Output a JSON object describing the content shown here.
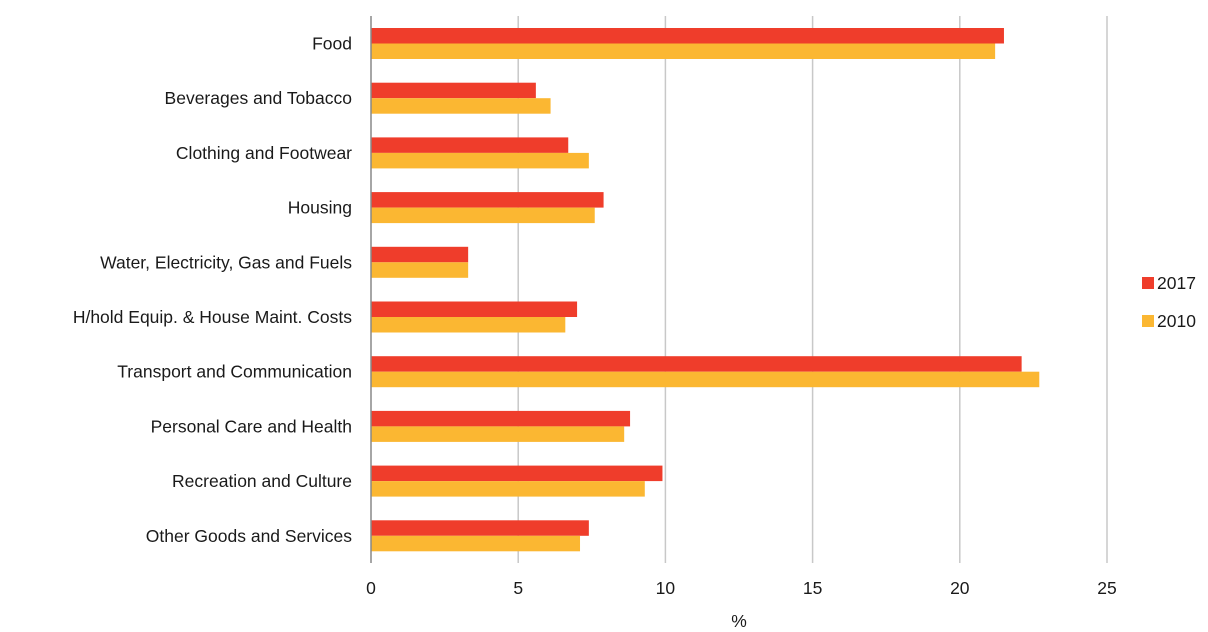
{
  "chart_data": {
    "type": "bar",
    "orientation": "horizontal",
    "categories": [
      "Food",
      "Beverages and Tobacco",
      "Clothing and Footwear",
      "Housing",
      "Water, Electricity, Gas and Fuels",
      "H/hold Equip. & House Maint. Costs",
      "Transport and Communication",
      "Personal Care and Health",
      "Recreation and Culture",
      "Other Goods and Services"
    ],
    "series": [
      {
        "name": "2017",
        "color": "#ef3d2b",
        "values": [
          21.5,
          5.6,
          6.7,
          7.9,
          3.3,
          7.0,
          22.1,
          8.8,
          9.9,
          7.4
        ]
      },
      {
        "name": "2010",
        "color": "#fbb732",
        "values": [
          21.2,
          6.1,
          7.4,
          7.6,
          3.3,
          6.6,
          22.7,
          8.6,
          9.3,
          7.1
        ]
      }
    ],
    "xlabel": "%",
    "xlim": [
      0,
      25
    ],
    "xticks": [
      "0",
      "5",
      "10",
      "15",
      "20",
      "25"
    ],
    "grid": "vertical",
    "legend_position": "right"
  }
}
